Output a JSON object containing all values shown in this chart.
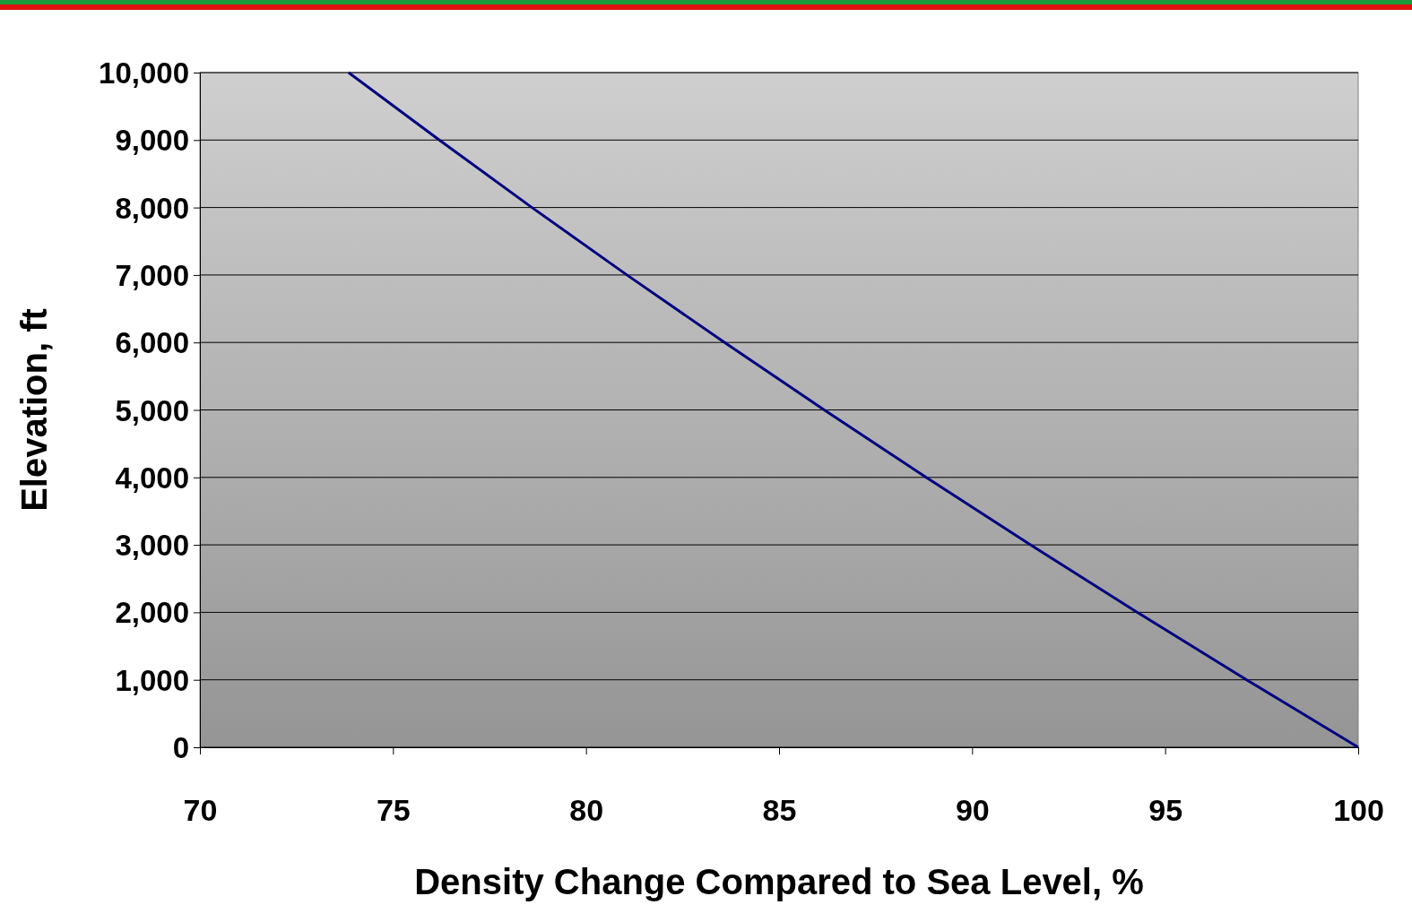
{
  "chart_data": {
    "type": "line",
    "xlabel": "Density Change Compared to Sea Level, %",
    "ylabel": "Elevation, ft",
    "x": [
      73.85,
      76.2,
      78.6,
      81.06,
      83.59,
      86.17,
      88.81,
      91.51,
      94.28,
      97.11,
      100
    ],
    "series": [
      {
        "color": "#000080",
        "values": [
          10000,
          9000,
          8000,
          7000,
          6000,
          5000,
          4000,
          3000,
          2000,
          1000,
          0
        ]
      }
    ],
    "xlim": [
      70,
      100
    ],
    "xticks": [
      70,
      75,
      80,
      85,
      90,
      95,
      100
    ],
    "ylim": [
      0,
      10000
    ],
    "yticks": [
      {
        "value": 0,
        "label": "0"
      },
      {
        "value": 1000,
        "label": "1,000"
      },
      {
        "value": 2000,
        "label": "2,000"
      },
      {
        "value": 3000,
        "label": "3,000"
      },
      {
        "value": 4000,
        "label": "4,000"
      },
      {
        "value": 5000,
        "label": "5,000"
      },
      {
        "value": 6000,
        "label": "6,000"
      },
      {
        "value": 7000,
        "label": "7,000"
      },
      {
        "value": 8000,
        "label": "8,000"
      },
      {
        "value": 9000,
        "label": "9,000"
      },
      {
        "value": 10000,
        "label": "10,000"
      }
    ],
    "grid": "y",
    "marker": "none",
    "line_style": "solid"
  }
}
